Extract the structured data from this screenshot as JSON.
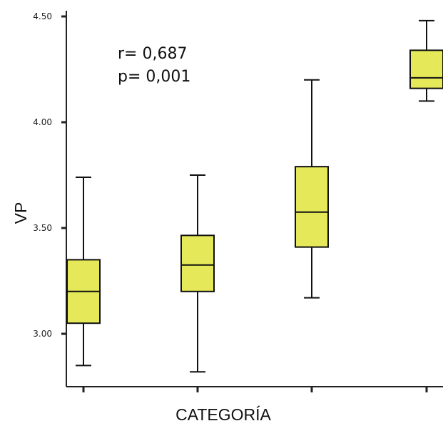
{
  "chart_data": {
    "type": "box",
    "xlabel": "CATEGORÍA",
    "ylabel": "VP",
    "ylim": [
      2.74,
      4.52
    ],
    "yticks": [
      "3.00",
      "3.50",
      "4.00",
      "4.50"
    ],
    "ytick_values": [
      3.0,
      3.5,
      4.0,
      4.5
    ],
    "grid": false,
    "box_color": "#e5e858",
    "categories": [
      "",
      "",
      "",
      ""
    ],
    "boxes": [
      {
        "whisker_low": 2.85,
        "q1": 3.05,
        "median": 3.2,
        "q3": 3.35,
        "whisker_high": 3.74
      },
      {
        "whisker_low": 2.82,
        "q1": 3.2,
        "median": 3.325,
        "q3": 3.465,
        "whisker_high": 3.75
      },
      {
        "whisker_low": 3.17,
        "q1": 3.41,
        "median": 3.575,
        "q3": 3.79,
        "whisker_high": 4.2
      },
      {
        "whisker_low": 4.1,
        "q1": 4.16,
        "median": 4.21,
        "q3": 4.34,
        "whisker_high": 4.48
      }
    ],
    "annotations": [
      "r= 0,687",
      "p= 0,001"
    ]
  }
}
